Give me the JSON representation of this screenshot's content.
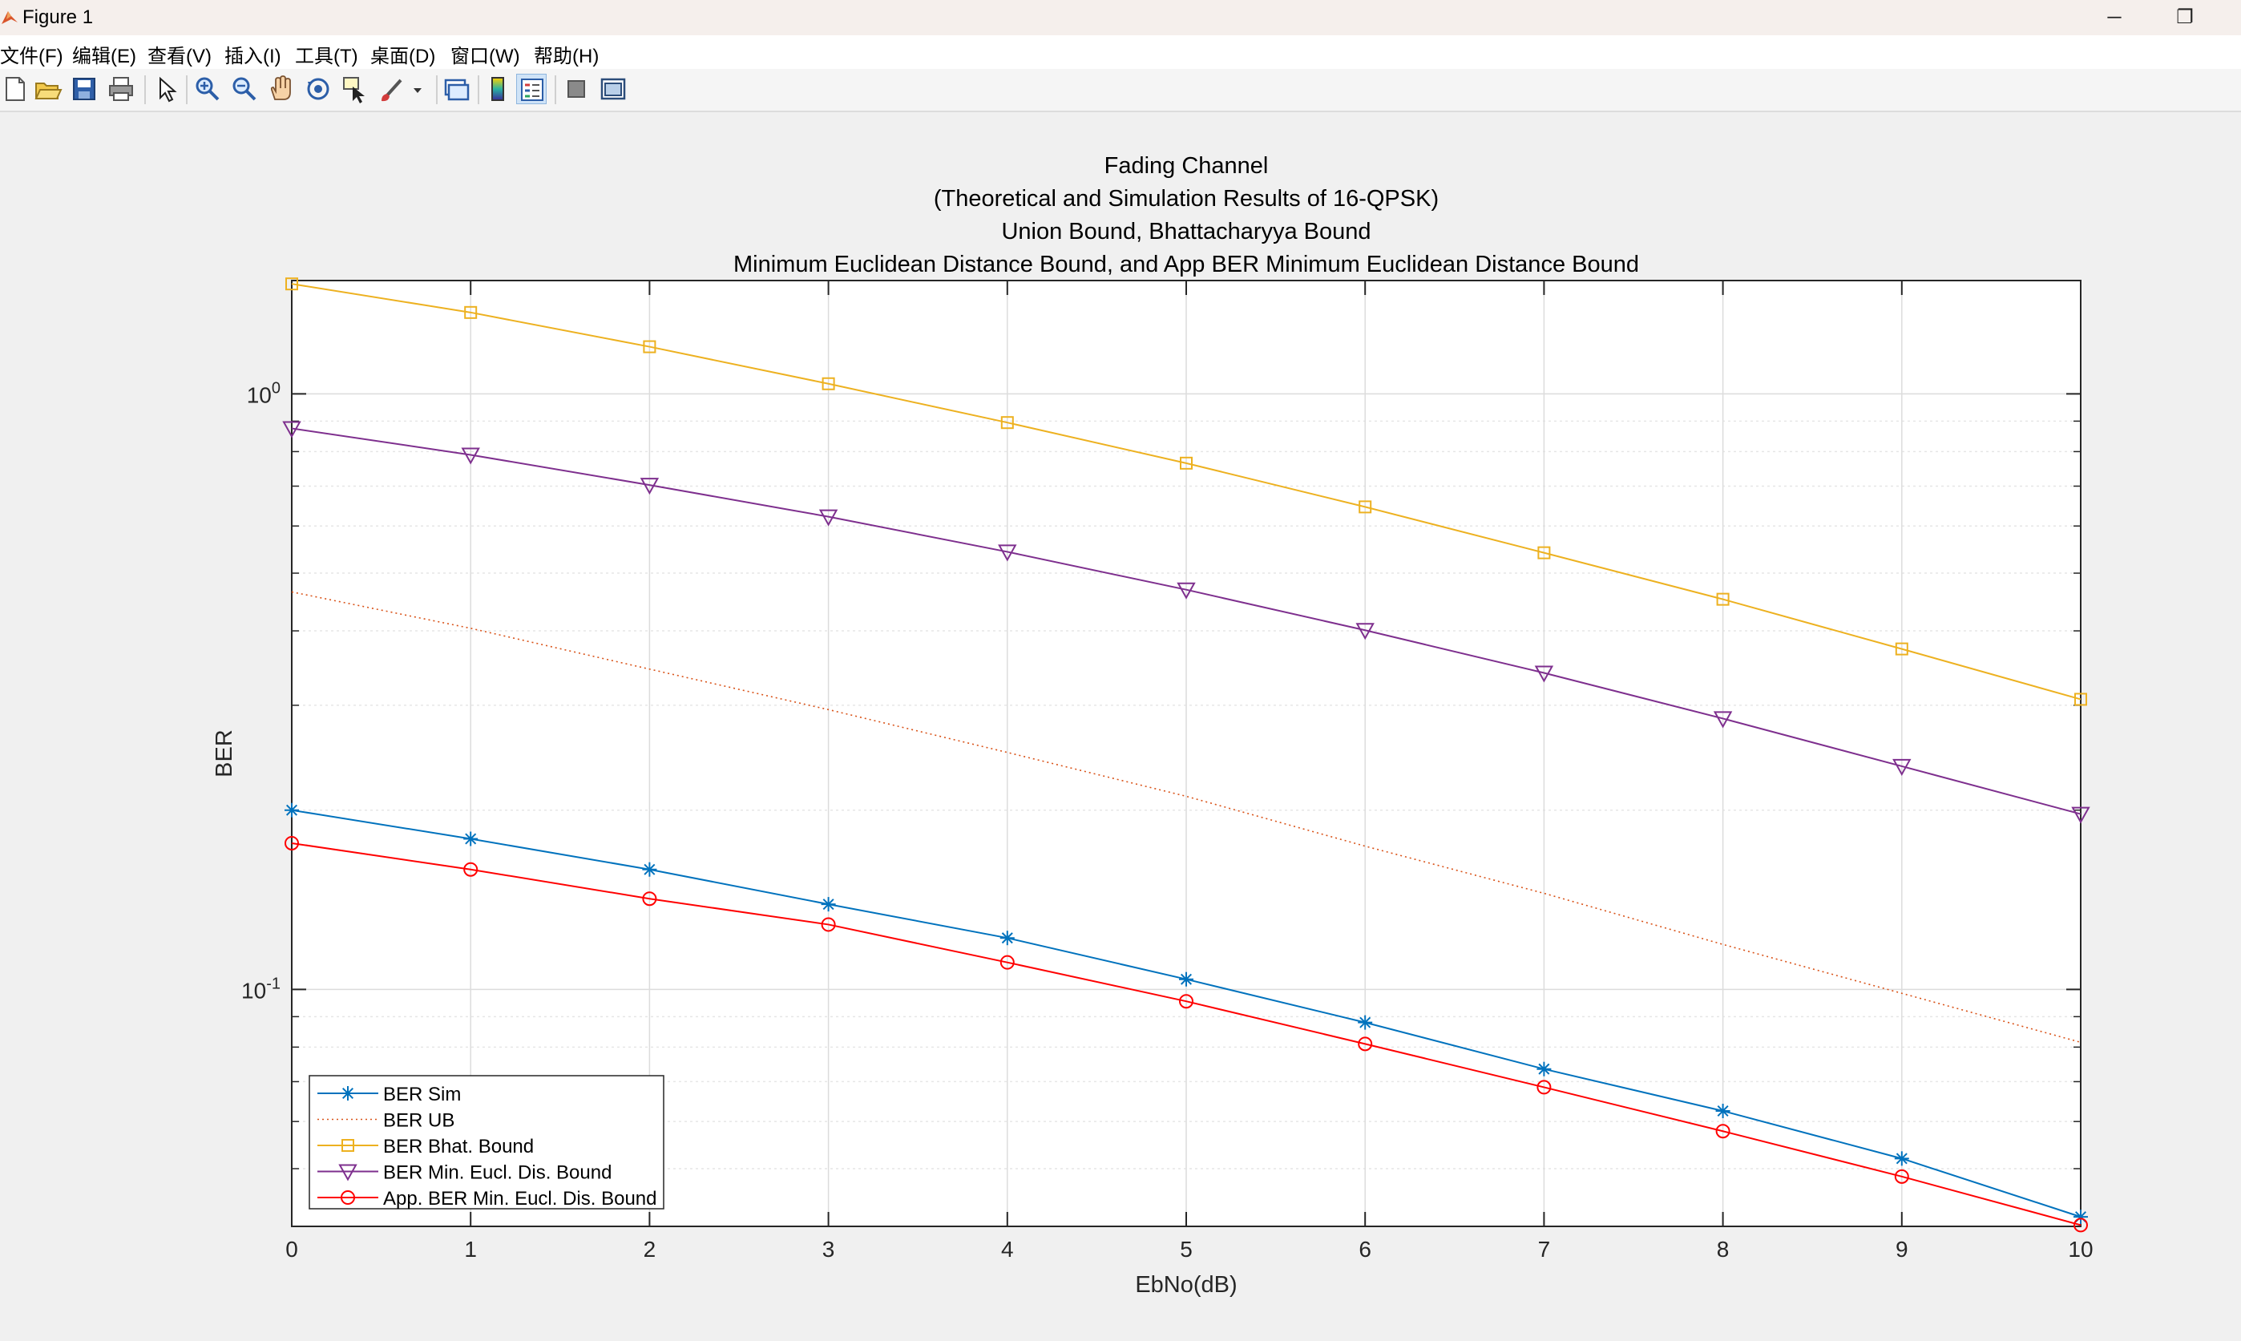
{
  "window": {
    "title": "Figure 1",
    "minimize_glyph": "─",
    "restore_glyph": "❐"
  },
  "menu": [
    {
      "label": "文件(F)"
    },
    {
      "label": "编辑(E)"
    },
    {
      "label": "查看(V)"
    },
    {
      "label": "插入(I)"
    },
    {
      "label": "工具(T)"
    },
    {
      "label": "桌面(D)"
    },
    {
      "label": "窗口(W)"
    },
    {
      "label": "帮助(H)"
    }
  ],
  "toolbar": [
    {
      "icon": "new-figure-icon"
    },
    {
      "icon": "open-file-icon"
    },
    {
      "icon": "save-icon"
    },
    {
      "icon": "print-icon"
    },
    {
      "icon": "edit-plot-arrow-icon"
    },
    {
      "icon": "zoom-in-icon"
    },
    {
      "icon": "zoom-out-icon"
    },
    {
      "icon": "pan-hand-icon"
    },
    {
      "icon": "rotate-3d-icon"
    },
    {
      "icon": "data-cursor-icon"
    },
    {
      "icon": "brush-icon"
    },
    {
      "icon": "link-plot-icon"
    },
    {
      "icon": "colorbar-icon"
    },
    {
      "icon": "legend-icon",
      "active": true
    },
    {
      "icon": "hide-plot-tools-icon"
    },
    {
      "icon": "show-plot-tools-icon"
    }
  ],
  "colors": {
    "ber_sim": "#0072BD",
    "ber_ub": "#D95319",
    "ber_bhat": "#EDB120",
    "ber_min_eucl": "#7E2F8E",
    "app_ber": "#FF0000"
  },
  "chart_data": {
    "type": "line",
    "title": [
      "Fading Channel",
      "(Theoretical and Simulation Results of 16-QPSK)",
      "Union Bound, Bhattacharyya Bound",
      "Minimum Euclidean Distance Bound, and App BER Minimum Euclidean Distance Bound"
    ],
    "xlabel": "EbNo(dB)",
    "ylabel": "BER",
    "yscale": "log",
    "xlim": [
      0,
      10
    ],
    "ylim": [
      0.04,
      1.55
    ],
    "grid": true,
    "legend_position": "bottom-left",
    "x": [
      0,
      1,
      2,
      3,
      4,
      5,
      6,
      7,
      8,
      9,
      10
    ],
    "x_ticks": [
      "0",
      "1",
      "2",
      "3",
      "4",
      "5",
      "6",
      "7",
      "8",
      "9",
      "10"
    ],
    "y_ticks": [
      {
        "value": 1,
        "base": "10",
        "exp": "0"
      },
      {
        "value": 0.1,
        "base": "10",
        "exp": "-1"
      }
    ],
    "series": [
      {
        "name": "BER Sim",
        "marker": "asterisk",
        "line": "solid",
        "values": [
          0.2,
          0.179,
          0.159,
          0.139,
          0.122,
          0.104,
          0.088,
          0.0735,
          0.0625,
          0.052,
          0.0415
        ]
      },
      {
        "name": "BER UB",
        "marker": "none",
        "line": "dotted",
        "values": [
          0.465,
          0.404,
          0.345,
          0.295,
          0.25,
          0.211,
          0.174,
          0.145,
          0.119,
          0.0985,
          0.0815
        ]
      },
      {
        "name": "BER Bhat. Bound",
        "marker": "square",
        "line": "solid",
        "values": [
          1.53,
          1.37,
          1.2,
          1.04,
          0.895,
          0.765,
          0.646,
          0.541,
          0.452,
          0.373,
          0.307
        ]
      },
      {
        "name": "BER Min. Eucl. Dis. Bound",
        "marker": "triangle-down",
        "line": "solid",
        "values": [
          0.875,
          0.79,
          0.703,
          0.622,
          0.543,
          0.469,
          0.401,
          0.34,
          0.285,
          0.237,
          0.197
        ]
      },
      {
        "name": "App. BER Min. Eucl. Dis. Bound",
        "marker": "circle",
        "line": "solid",
        "values": [
          0.176,
          0.159,
          0.142,
          0.1285,
          0.111,
          0.0955,
          0.081,
          0.0685,
          0.0578,
          0.0485,
          0.0402
        ]
      }
    ]
  }
}
